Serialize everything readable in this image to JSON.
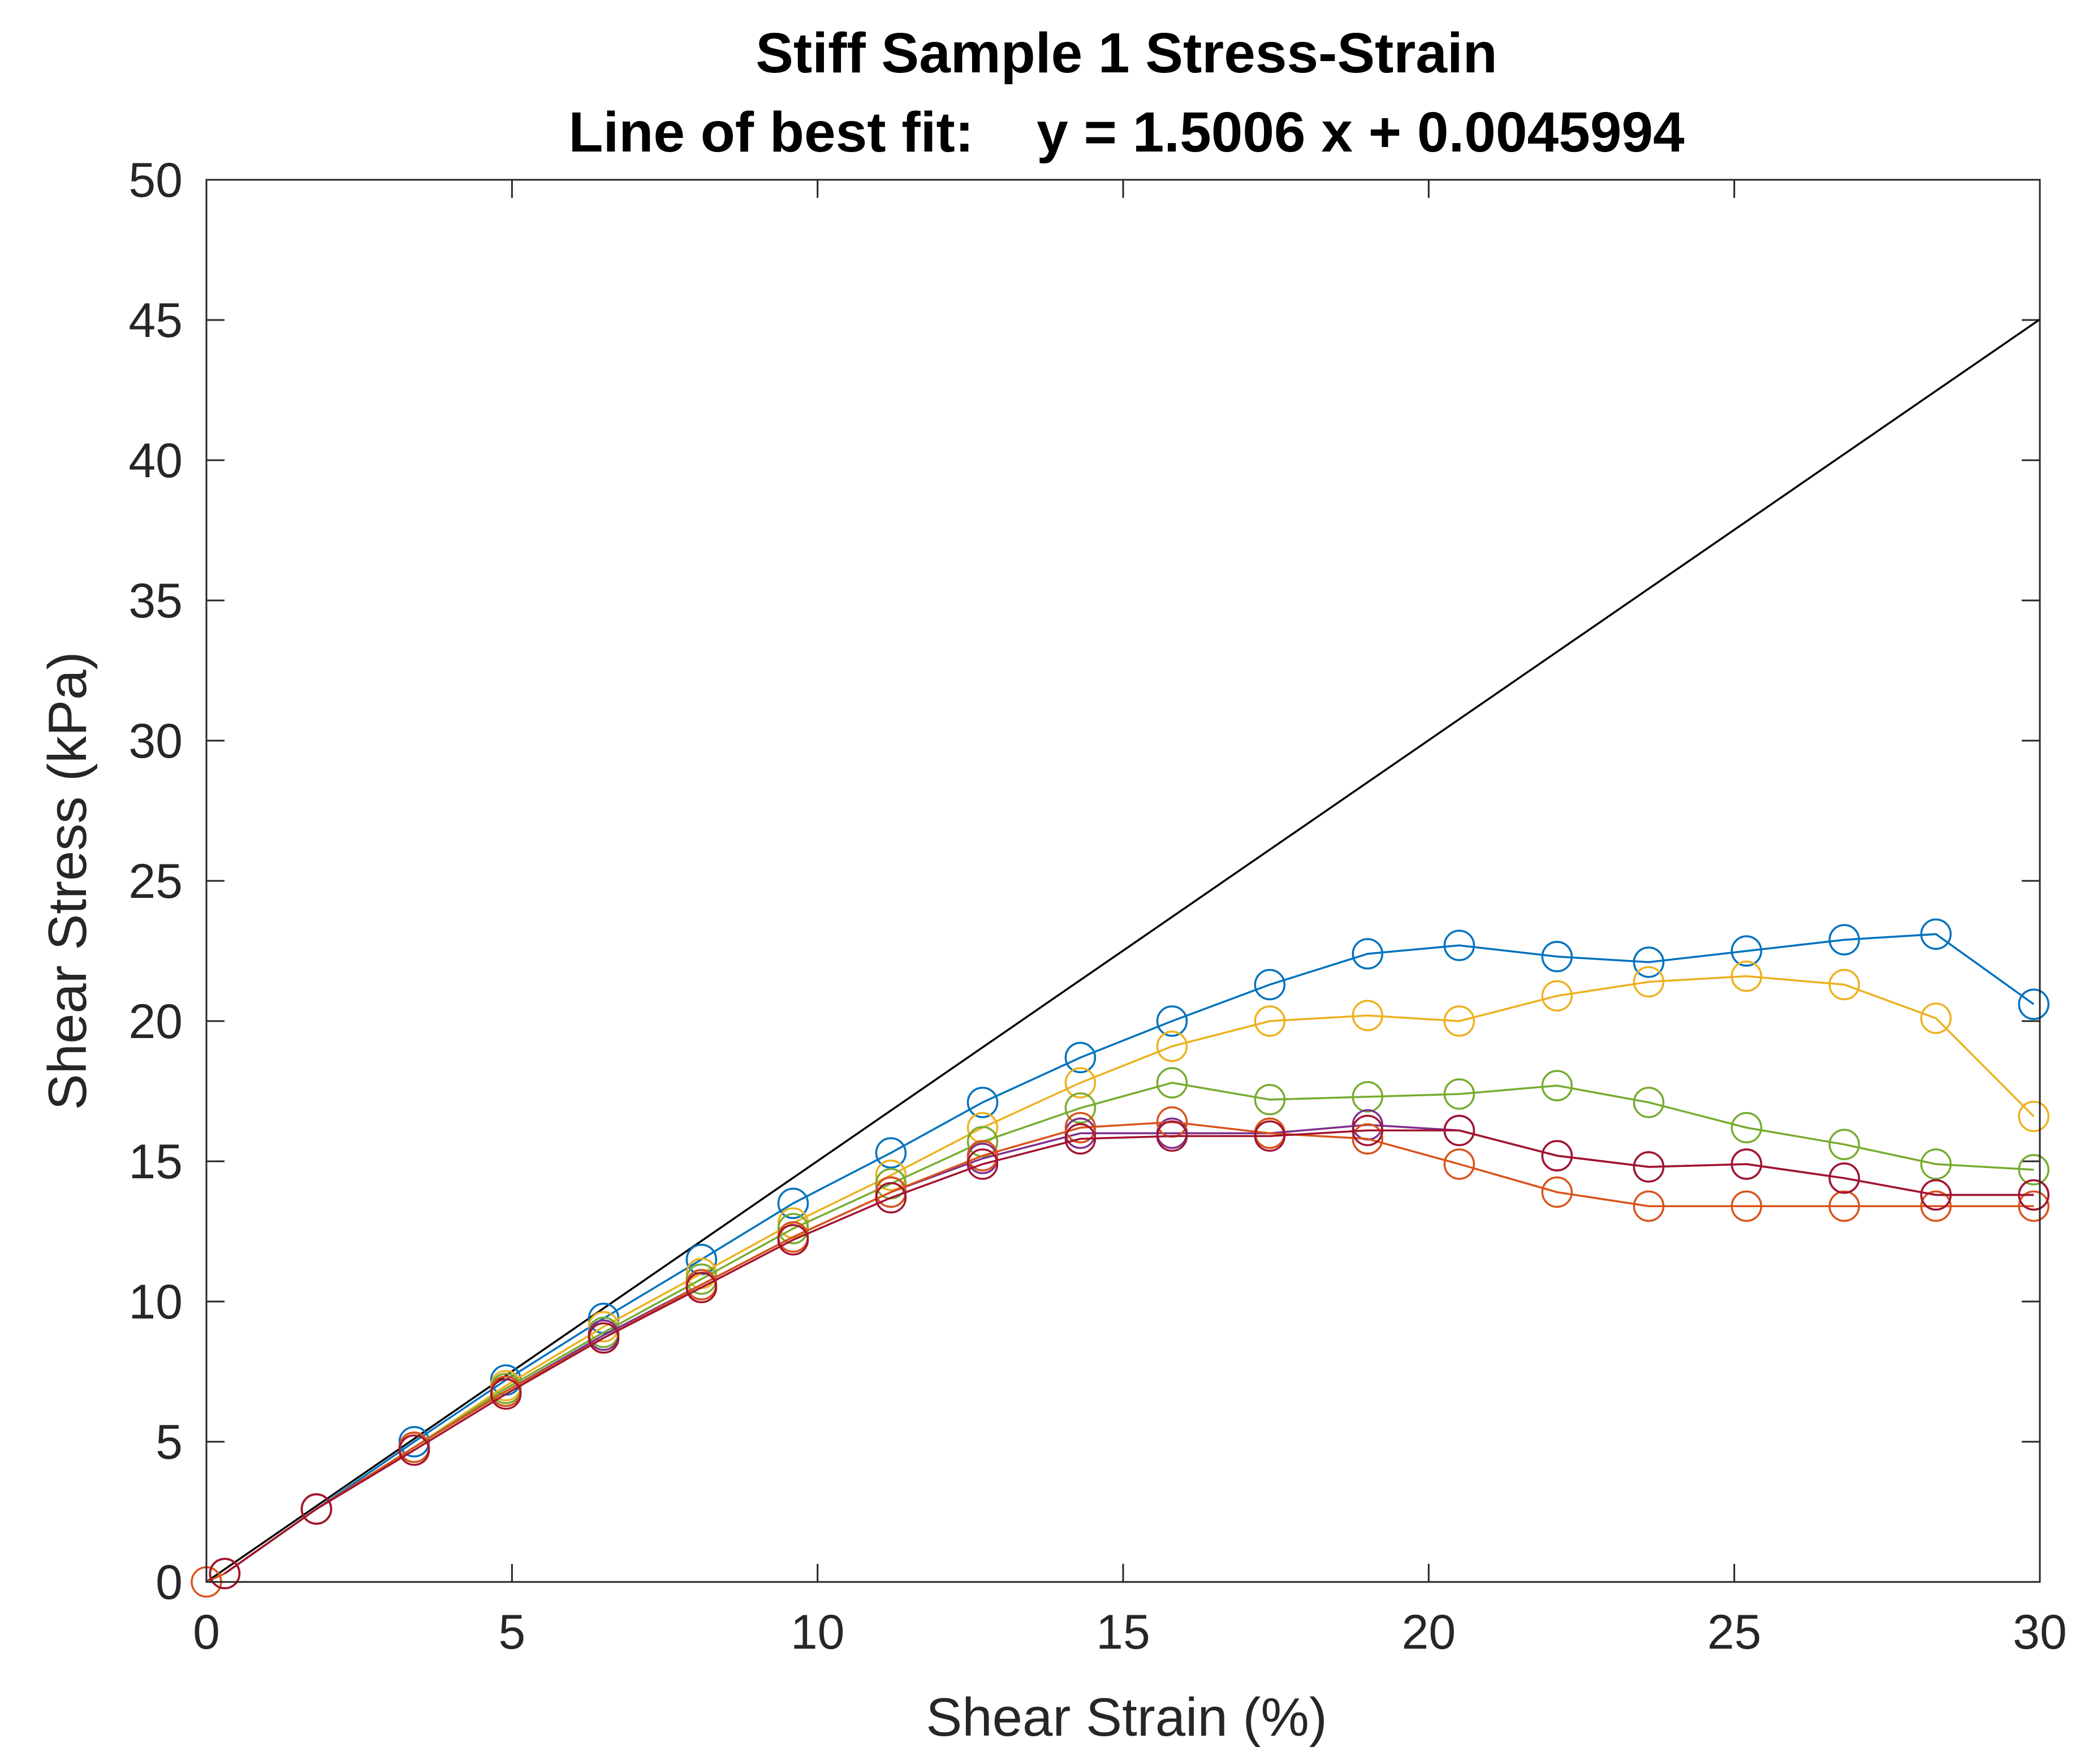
{
  "chart_data": {
    "type": "line",
    "title": "Stiff Sample 1 Stress-Strain",
    "subtitle": "Line of best fit:    y = 1.5006 x + 0.0045994",
    "xlabel": "Shear Strain (%)",
    "ylabel": "Shear Stress (kPa)",
    "xlim": [
      0,
      30
    ],
    "ylim": [
      0,
      50
    ],
    "xticks": [
      0,
      5,
      10,
      15,
      20,
      25,
      30
    ],
    "yticks": [
      0,
      5,
      10,
      15,
      20,
      25,
      30,
      35,
      40,
      45,
      50
    ],
    "grid": false,
    "legend": "none",
    "fit_line": {
      "slope": 1.5006,
      "intercept": 0.0045994,
      "x": [
        0,
        30
      ],
      "color": "#000000"
    },
    "marker": "circle",
    "series": [
      {
        "color": "#0072BD",
        "x": [
          0.3,
          1.8,
          3.4,
          4.9,
          6.5,
          8.1,
          9.6,
          11.2,
          12.7,
          14.3,
          15.8,
          17.4,
          19.0,
          20.5,
          22.1,
          23.6,
          25.2,
          26.8,
          28.3,
          29.9
        ],
        "y": [
          0.3,
          2.6,
          5.0,
          7.2,
          9.4,
          11.5,
          13.5,
          15.3,
          17.1,
          18.7,
          20.0,
          21.3,
          22.4,
          22.7,
          22.3,
          22.1,
          22.5,
          22.9,
          23.1,
          20.6
        ]
      },
      {
        "color": "#EDB120",
        "x": [
          0.3,
          1.8,
          3.4,
          4.9,
          6.5,
          8.1,
          9.6,
          11.2,
          12.7,
          14.3,
          15.8,
          17.4,
          19.0,
          20.5,
          22.1,
          23.6,
          25.2,
          26.8,
          28.3,
          29.9
        ],
        "y": [
          0.3,
          2.6,
          4.8,
          7.0,
          9.1,
          11.0,
          12.8,
          14.5,
          16.2,
          17.8,
          19.1,
          20.0,
          20.2,
          20.0,
          20.9,
          21.4,
          21.6,
          21.3,
          20.1,
          16.6
        ]
      },
      {
        "color": "#77AC30",
        "x": [
          0.3,
          1.8,
          3.4,
          4.9,
          6.5,
          8.1,
          9.6,
          11.2,
          12.7,
          14.3,
          15.8,
          17.4,
          19.0,
          20.5,
          22.1,
          23.6,
          25.2,
          26.8,
          28.3,
          29.9
        ],
        "y": [
          0.3,
          2.6,
          4.8,
          6.9,
          8.9,
          10.8,
          12.6,
          14.2,
          15.7,
          16.9,
          17.8,
          17.2,
          17.3,
          17.4,
          17.7,
          17.1,
          16.2,
          15.6,
          14.9,
          14.7
        ]
      },
      {
        "color": "#7E2F8E",
        "x": [
          0.3,
          1.8,
          3.4,
          4.9,
          6.5,
          8.1,
          9.6,
          11.2,
          12.7,
          14.3,
          15.8,
          17.4,
          19.0,
          20.5,
          22.1,
          23.6,
          25.2,
          26.8,
          28.3,
          29.9
        ],
        "y": [
          0.3,
          2.6,
          4.8,
          6.8,
          8.8,
          10.6,
          12.3,
          13.9,
          15.1,
          16.0,
          16.0,
          16.0,
          16.3,
          16.1,
          15.2,
          14.8,
          14.9,
          14.4,
          13.8,
          13.8
        ]
      },
      {
        "color": "#D95319",
        "x": [
          0.0,
          0.3,
          1.8,
          3.4,
          4.9,
          6.5,
          8.1,
          9.6,
          11.2,
          12.7,
          14.3,
          15.8,
          17.4,
          19.0,
          20.5,
          22.1,
          23.6,
          25.2,
          26.8,
          28.3,
          29.9
        ],
        "y": [
          0.0,
          0.3,
          2.6,
          4.8,
          6.8,
          8.7,
          10.6,
          12.3,
          13.9,
          15.2,
          16.2,
          16.4,
          16.0,
          15.8,
          14.9,
          13.9,
          13.4,
          13.4,
          13.4,
          13.4,
          13.4
        ]
      },
      {
        "color": "#A2142F",
        "x": [
          0.3,
          1.8,
          3.4,
          4.9,
          6.5,
          8.1,
          9.6,
          11.2,
          12.7,
          14.3,
          15.8,
          17.4,
          19.0,
          20.5,
          22.1,
          23.6,
          25.2,
          26.8,
          28.3,
          29.9
        ],
        "y": [
          0.3,
          2.6,
          4.7,
          6.7,
          8.7,
          10.5,
          12.2,
          13.7,
          14.9,
          15.8,
          15.9,
          15.9,
          16.1,
          16.1,
          15.2,
          14.8,
          14.9,
          14.4,
          13.8,
          13.8
        ]
      }
    ]
  }
}
